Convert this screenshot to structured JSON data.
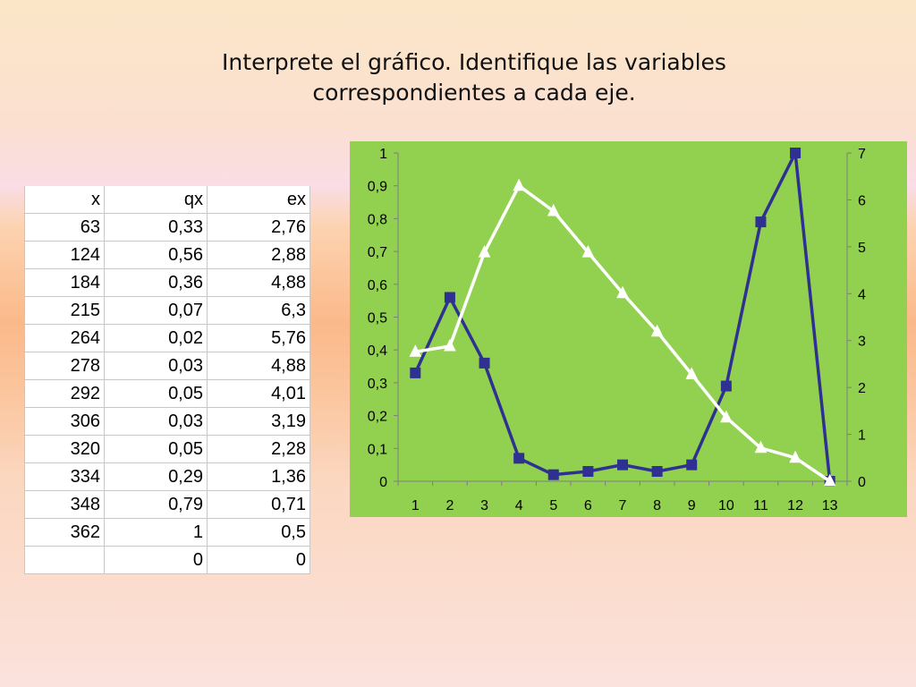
{
  "title": {
    "line1": "Interprete el  gráfico. Identifique las variables",
    "line2": "correspondientes a cada eje."
  },
  "table": {
    "headers": [
      "x",
      "qx",
      "ex"
    ],
    "rows": [
      [
        "63",
        "0,33",
        "2,76"
      ],
      [
        "124",
        "0,56",
        "2,88"
      ],
      [
        "184",
        "0,36",
        "4,88"
      ],
      [
        "215",
        "0,07",
        "6,3"
      ],
      [
        "264",
        "0,02",
        "5,76"
      ],
      [
        "278",
        "0,03",
        "4,88"
      ],
      [
        "292",
        "0,05",
        "4,01"
      ],
      [
        "306",
        "0,03",
        "3,19"
      ],
      [
        "320",
        "0,05",
        "2,28"
      ],
      [
        "334",
        "0,29",
        "1,36"
      ],
      [
        "348",
        "0,79",
        "0,71"
      ],
      [
        "362",
        "1",
        "0,5"
      ],
      [
        "",
        "0",
        "0"
      ]
    ]
  },
  "chart_data": {
    "type": "line",
    "x": [
      1,
      2,
      3,
      4,
      5,
      6,
      7,
      8,
      9,
      10,
      11,
      12,
      13
    ],
    "series": [
      {
        "values": [
          0.33,
          0.56,
          0.36,
          0.07,
          0.02,
          0.03,
          0.05,
          0.03,
          0.05,
          0.29,
          0.79,
          1,
          0
        ],
        "axis": "left",
        "marker": "square",
        "color": "#2e3192"
      },
      {
        "values": [
          2.76,
          2.88,
          4.88,
          6.3,
          5.76,
          4.88,
          4.01,
          3.19,
          2.28,
          1.36,
          0.71,
          0.5,
          0
        ],
        "axis": "right",
        "marker": "triangle",
        "color": "#ffffff"
      }
    ],
    "x_ticks": [
      "1",
      "2",
      "3",
      "4",
      "5",
      "6",
      "7",
      "8",
      "9",
      "10",
      "11",
      "12",
      "13"
    ],
    "y_left_ticks": [
      "0",
      "0,1",
      "0,2",
      "0,3",
      "0,4",
      "0,5",
      "0,6",
      "0,7",
      "0,8",
      "0,9",
      "1"
    ],
    "y_right_ticks": [
      "0",
      "1",
      "2",
      "3",
      "4",
      "5",
      "6",
      "7"
    ],
    "ylim_left": [
      0,
      1
    ],
    "ylim_right": [
      0,
      7
    ],
    "grid": false,
    "background": "#92d050"
  }
}
